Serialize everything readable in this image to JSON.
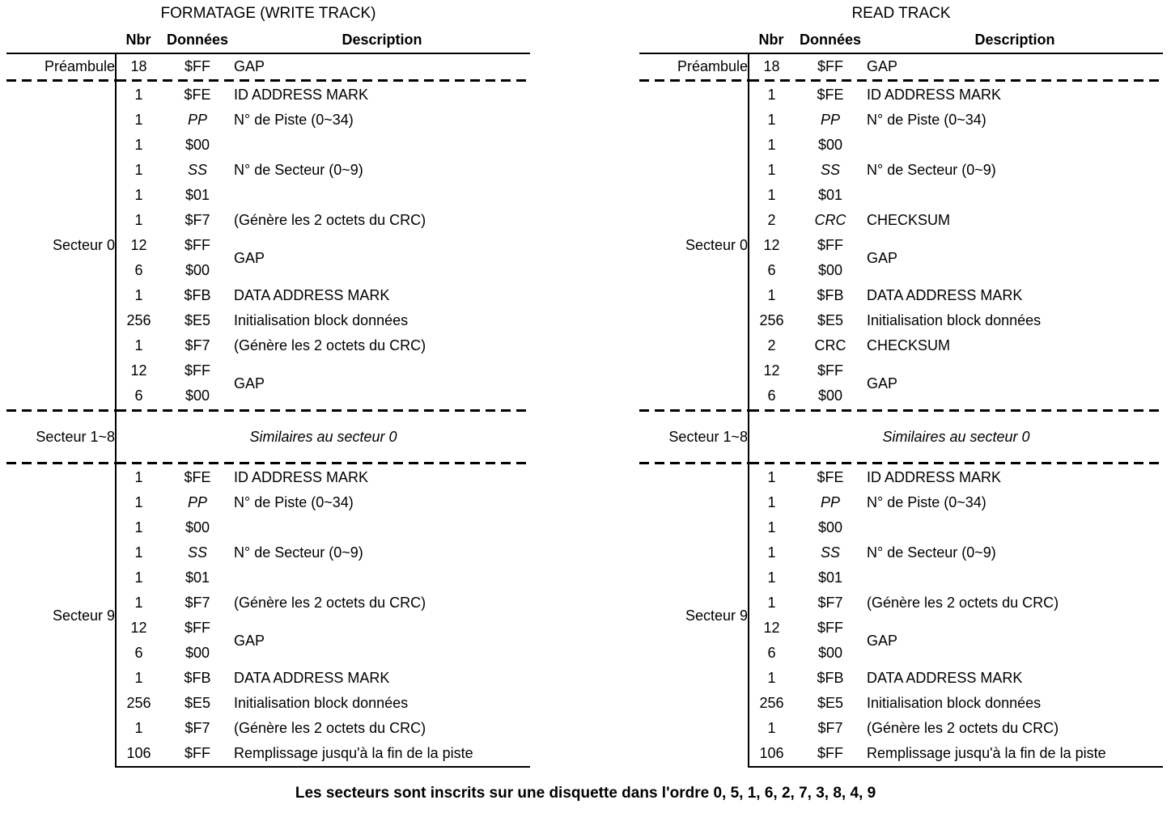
{
  "footer": "Les secteurs sont inscrits sur une disquette dans l'ordre 0, 5, 1, 6, 2, 7, 3, 8, 4, 9",
  "tables": [
    {
      "title": "FORMATAGE (WRITE TRACK)",
      "headers": {
        "nbr": "Nbr",
        "data": "Données",
        "desc": "Description"
      },
      "preamble": {
        "label": "Préambule",
        "nbr": "18",
        "data": "$FF",
        "desc": "GAP"
      },
      "sector0": {
        "label": "Secteur 0",
        "rows": [
          {
            "nbr": "1",
            "data": "$FE",
            "italic": false,
            "desc": "ID ADDRESS MARK"
          },
          {
            "nbr": "1",
            "data": "PP",
            "italic": true,
            "desc": "N° de Piste (0~34)"
          },
          {
            "nbr": "1",
            "data": "$00",
            "italic": false,
            "desc": ""
          },
          {
            "nbr": "1",
            "data": "SS",
            "italic": true,
            "desc": "N° de Secteur (0~9)"
          },
          {
            "nbr": "1",
            "data": "$01",
            "italic": false,
            "desc": ""
          },
          {
            "nbr": "1",
            "data": "$F7",
            "italic": false,
            "desc": "(Génère les 2 octets du CRC)"
          },
          {
            "nbr": "12",
            "data": "$FF",
            "italic": false,
            "desc": "GAP",
            "span": 2
          },
          {
            "nbr": "6",
            "data": "$00",
            "italic": false,
            "skipDesc": true
          },
          {
            "nbr": "1",
            "data": "$FB",
            "italic": false,
            "desc": "DATA ADDRESS MARK"
          },
          {
            "nbr": "256",
            "data": "$E5",
            "italic": false,
            "desc": "Initialisation block données"
          },
          {
            "nbr": "1",
            "data": "$F7",
            "italic": false,
            "desc": "(Génère les 2 octets du CRC)"
          },
          {
            "nbr": "12",
            "data": "$FF",
            "italic": false,
            "desc": "GAP",
            "span": 2
          },
          {
            "nbr": "6",
            "data": "$00",
            "italic": false,
            "skipDesc": true
          }
        ]
      },
      "middle": {
        "label": "Secteur 1~8",
        "text": "Similaires au secteur 0"
      },
      "sector9": {
        "label": "Secteur 9",
        "rows": [
          {
            "nbr": "1",
            "data": "$FE",
            "italic": false,
            "desc": "ID ADDRESS MARK"
          },
          {
            "nbr": "1",
            "data": "PP",
            "italic": true,
            "desc": "N° de Piste (0~34)"
          },
          {
            "nbr": "1",
            "data": "$00",
            "italic": false,
            "desc": ""
          },
          {
            "nbr": "1",
            "data": "SS",
            "italic": true,
            "desc": "N° de Secteur (0~9)"
          },
          {
            "nbr": "1",
            "data": "$01",
            "italic": false,
            "desc": ""
          },
          {
            "nbr": "1",
            "data": "$F7",
            "italic": false,
            "desc": "(Génère les 2 octets du CRC)"
          },
          {
            "nbr": "12",
            "data": "$FF",
            "italic": false,
            "desc": "GAP",
            "span": 2
          },
          {
            "nbr": "6",
            "data": "$00",
            "italic": false,
            "skipDesc": true
          },
          {
            "nbr": "1",
            "data": "$FB",
            "italic": false,
            "desc": "DATA ADDRESS MARK"
          },
          {
            "nbr": "256",
            "data": "$E5",
            "italic": false,
            "desc": "Initialisation block données"
          },
          {
            "nbr": "1",
            "data": "$F7",
            "italic": false,
            "desc": "(Génère les 2 octets du CRC)"
          },
          {
            "nbr": "106",
            "data": "$FF",
            "italic": false,
            "desc": "Remplissage jusqu'à la fin de la piste"
          }
        ]
      }
    },
    {
      "title": "READ TRACK",
      "headers": {
        "nbr": "Nbr",
        "data": "Données",
        "desc": "Description"
      },
      "preamble": {
        "label": "Préambule",
        "nbr": "18",
        "data": "$FF",
        "desc": "GAP"
      },
      "sector0": {
        "label": "Secteur 0",
        "rows": [
          {
            "nbr": "1",
            "data": "$FE",
            "italic": false,
            "desc": "ID ADDRESS MARK"
          },
          {
            "nbr": "1",
            "data": "PP",
            "italic": true,
            "desc": "N° de Piste (0~34)"
          },
          {
            "nbr": "1",
            "data": "$00",
            "italic": false,
            "desc": ""
          },
          {
            "nbr": "1",
            "data": "SS",
            "italic": true,
            "desc": "N° de Secteur (0~9)"
          },
          {
            "nbr": "1",
            "data": "$01",
            "italic": false,
            "desc": ""
          },
          {
            "nbr": "2",
            "data": "CRC",
            "italic": true,
            "desc": "CHECKSUM"
          },
          {
            "nbr": "12",
            "data": "$FF",
            "italic": false,
            "desc": "GAP",
            "span": 2
          },
          {
            "nbr": "6",
            "data": "$00",
            "italic": false,
            "skipDesc": true
          },
          {
            "nbr": "1",
            "data": "$FB",
            "italic": false,
            "desc": "DATA ADDRESS MARK"
          },
          {
            "nbr": "256",
            "data": "$E5",
            "italic": false,
            "desc": "Initialisation block données"
          },
          {
            "nbr": "2",
            "data": "CRC",
            "italic": false,
            "desc": "CHECKSUM"
          },
          {
            "nbr": "12",
            "data": "$FF",
            "italic": false,
            "desc": "GAP",
            "span": 2
          },
          {
            "nbr": "6",
            "data": "$00",
            "italic": false,
            "skipDesc": true
          }
        ]
      },
      "middle": {
        "label": "Secteur 1~8",
        "text": "Similaires au secteur 0"
      },
      "sector9": {
        "label": "Secteur 9",
        "rows": [
          {
            "nbr": "1",
            "data": "$FE",
            "italic": false,
            "desc": "ID ADDRESS MARK"
          },
          {
            "nbr": "1",
            "data": "PP",
            "italic": true,
            "desc": "N° de Piste (0~34)"
          },
          {
            "nbr": "1",
            "data": "$00",
            "italic": false,
            "desc": ""
          },
          {
            "nbr": "1",
            "data": "SS",
            "italic": true,
            "desc": "N° de Secteur (0~9)"
          },
          {
            "nbr": "1",
            "data": "$01",
            "italic": false,
            "desc": ""
          },
          {
            "nbr": "1",
            "data": "$F7",
            "italic": false,
            "desc": "(Génère les 2 octets du CRC)"
          },
          {
            "nbr": "12",
            "data": "$FF",
            "italic": false,
            "desc": "GAP",
            "span": 2
          },
          {
            "nbr": "6",
            "data": "$00",
            "italic": false,
            "skipDesc": true
          },
          {
            "nbr": "1",
            "data": "$FB",
            "italic": false,
            "desc": "DATA ADDRESS MARK"
          },
          {
            "nbr": "256",
            "data": "$E5",
            "italic": false,
            "desc": "Initialisation block données"
          },
          {
            "nbr": "1",
            "data": "$F7",
            "italic": false,
            "desc": "(Génère les 2 octets du CRC)"
          },
          {
            "nbr": "106",
            "data": "$FF",
            "italic": false,
            "desc": "Remplissage jusqu'à la fin de la piste"
          }
        ]
      }
    }
  ]
}
